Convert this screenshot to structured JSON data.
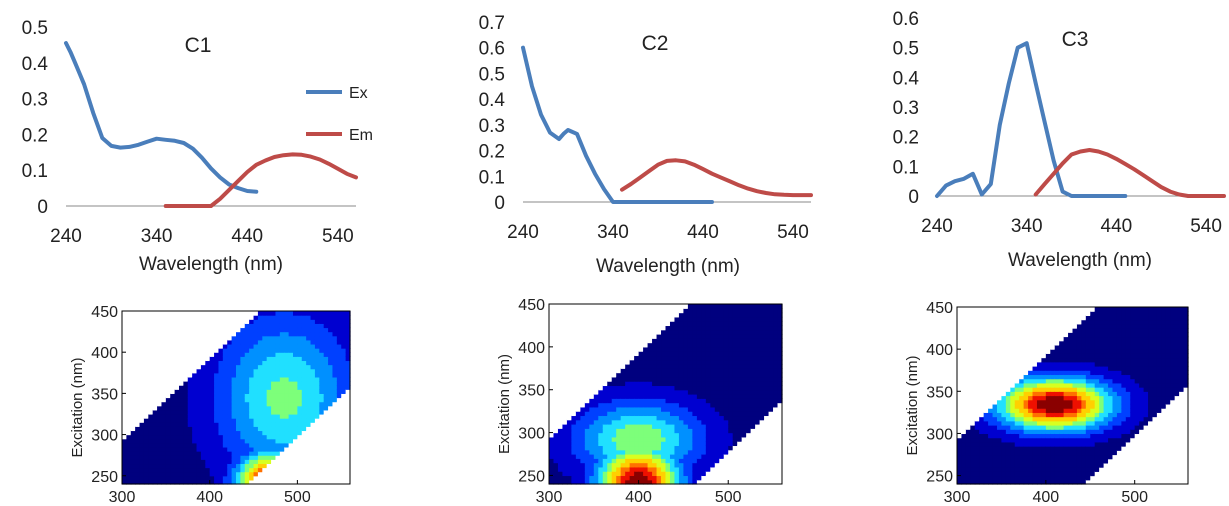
{
  "chart_data": [
    {
      "type": "line",
      "title": "C1",
      "xlabel": "Wavelength (nm)",
      "ylabel": "",
      "xlim": [
        240,
        560
      ],
      "ylim": [
        0,
        0.5
      ],
      "xticks": [
        "240",
        "340",
        "440",
        "540"
      ],
      "yticks": [
        "0",
        "0.1",
        "0.2",
        "0.3",
        "0.4",
        "0.5"
      ],
      "legend": "right",
      "series": [
        {
          "name": "Ex",
          "color": "#4a7ebb",
          "x": [
            240,
            245,
            250,
            255,
            260,
            270,
            280,
            290,
            300,
            310,
            320,
            330,
            340,
            350,
            360,
            370,
            380,
            390,
            400,
            410,
            420,
            430,
            440,
            450
          ],
          "y": [
            0.455,
            0.43,
            0.4,
            0.37,
            0.34,
            0.26,
            0.19,
            0.168,
            0.163,
            0.165,
            0.171,
            0.18,
            0.188,
            0.185,
            0.182,
            0.176,
            0.16,
            0.135,
            0.105,
            0.08,
            0.06,
            0.05,
            0.042,
            0.04
          ]
        },
        {
          "name": "Em",
          "color": "#be4b48",
          "x": [
            350,
            360,
            370,
            380,
            390,
            400,
            410,
            420,
            430,
            440,
            450,
            460,
            470,
            480,
            490,
            500,
            510,
            520,
            530,
            540,
            550,
            560
          ],
          "y": [
            0,
            0,
            0,
            0,
            0,
            0,
            0.02,
            0.045,
            0.07,
            0.095,
            0.115,
            0.127,
            0.137,
            0.142,
            0.144,
            0.143,
            0.138,
            0.13,
            0.118,
            0.104,
            0.09,
            0.08
          ]
        }
      ]
    },
    {
      "type": "line",
      "title": "C2",
      "xlabel": "Wavelength (nm)",
      "ylabel": "",
      "xlim": [
        240,
        560
      ],
      "ylim": [
        0,
        0.7
      ],
      "xticks": [
        "240",
        "340",
        "440",
        "540"
      ],
      "yticks": [
        "0",
        "0.1",
        "0.2",
        "0.3",
        "0.4",
        "0.5",
        "0.6",
        "0.7"
      ],
      "series": [
        {
          "name": "Ex",
          "color": "#4a7ebb",
          "x": [
            240,
            250,
            260,
            270,
            280,
            285,
            290,
            300,
            310,
            320,
            330,
            340,
            350,
            360,
            370,
            380,
            390,
            400,
            410,
            420,
            430,
            440,
            450
          ],
          "y": [
            0.6,
            0.45,
            0.34,
            0.27,
            0.245,
            0.265,
            0.28,
            0.265,
            0.18,
            0.11,
            0.05,
            0,
            0,
            0,
            0,
            0,
            0,
            0,
            0,
            0,
            0,
            0,
            0
          ]
        },
        {
          "name": "Em",
          "color": "#be4b48",
          "x": [
            350,
            360,
            370,
            380,
            390,
            400,
            410,
            420,
            430,
            440,
            450,
            460,
            470,
            480,
            490,
            500,
            510,
            520,
            530,
            540,
            550,
            560
          ],
          "y": [
            0.048,
            0.07,
            0.095,
            0.12,
            0.145,
            0.16,
            0.162,
            0.158,
            0.145,
            0.128,
            0.11,
            0.095,
            0.08,
            0.065,
            0.052,
            0.042,
            0.035,
            0.03,
            0.028,
            0.027,
            0.027,
            0.027
          ]
        }
      ]
    },
    {
      "type": "line",
      "title": "C3",
      "xlabel": "Wavelength (nm)",
      "ylabel": "",
      "xlim": [
        240,
        560
      ],
      "ylim": [
        0,
        0.6
      ],
      "xticks": [
        "240",
        "340",
        "440",
        "540"
      ],
      "yticks": [
        "0",
        "0.1",
        "0.2",
        "0.3",
        "0.4",
        "0.5",
        "0.6"
      ],
      "series": [
        {
          "name": "Ex",
          "color": "#4a7ebb",
          "x": [
            240,
            250,
            260,
            270,
            280,
            290,
            300,
            310,
            320,
            330,
            340,
            350,
            360,
            370,
            380,
            390,
            400,
            410,
            420,
            430,
            440,
            450
          ],
          "y": [
            0,
            0.035,
            0.05,
            0.058,
            0.075,
            0.005,
            0.04,
            0.24,
            0.38,
            0.5,
            0.515,
            0.38,
            0.25,
            0.12,
            0.015,
            0,
            0,
            0,
            0,
            0,
            0,
            0
          ]
        },
        {
          "name": "Em",
          "color": "#be4b48",
          "x": [
            350,
            360,
            370,
            380,
            390,
            400,
            410,
            420,
            430,
            440,
            450,
            460,
            470,
            480,
            490,
            500,
            510,
            520,
            530,
            540,
            550,
            560
          ],
          "y": [
            0.005,
            0.04,
            0.075,
            0.11,
            0.14,
            0.15,
            0.155,
            0.15,
            0.14,
            0.125,
            0.108,
            0.09,
            0.07,
            0.05,
            0.03,
            0.015,
            0.005,
            0,
            0,
            0,
            0,
            0
          ]
        }
      ]
    },
    {
      "type": "heatmap",
      "title": "",
      "xlabel": "",
      "ylabel": "Excitation (nm)",
      "xlim": [
        300,
        560
      ],
      "ylim": [
        240,
        450
      ],
      "xticks": [
        "300",
        "400",
        "500"
      ],
      "yticks": [
        "250",
        "300",
        "350",
        "400",
        "450"
      ],
      "mask_intercept_em_minus_ex": 10,
      "mask_lower_cut_em_minus_ex": 200,
      "peaks": [
        {
          "em": 470,
          "ex": 240,
          "intensity": 1.0,
          "sigma_em": 28,
          "sigma_ex": 28
        },
        {
          "em": 485,
          "ex": 345,
          "intensity": 0.47,
          "sigma_em": 55,
          "sigma_ex": 70
        }
      ]
    },
    {
      "type": "heatmap",
      "title": "",
      "xlabel": "",
      "ylabel": "Excitation (nm)",
      "xlim": [
        300,
        560
      ],
      "ylim": [
        240,
        450
      ],
      "xticks": [
        "300",
        "400",
        "500"
      ],
      "yticks": [
        "250",
        "300",
        "350",
        "400",
        "450"
      ],
      "mask_intercept_em_minus_ex": 10,
      "mask_lower_cut_em_minus_ex": 220,
      "peaks": [
        {
          "em": 400,
          "ex": 240,
          "intensity": 1.0,
          "sigma_em": 32,
          "sigma_ex": 32
        },
        {
          "em": 400,
          "ex": 292,
          "intensity": 0.52,
          "sigma_em": 50,
          "sigma_ex": 32
        }
      ]
    },
    {
      "type": "heatmap",
      "title": "",
      "xlabel": "",
      "ylabel": "Excitation (nm)",
      "xlim": [
        300,
        560
      ],
      "ylim": [
        240,
        450
      ],
      "xticks": [
        "300",
        "400",
        "500"
      ],
      "yticks": [
        "250",
        "300",
        "350",
        "400",
        "450"
      ],
      "mask_intercept_em_minus_ex": 10,
      "mask_lower_cut_em_minus_ex": 200,
      "peaks": [
        {
          "em": 410,
          "ex": 335,
          "intensity": 1.0,
          "sigma_em": 45,
          "sigma_ex": 22
        }
      ]
    }
  ]
}
